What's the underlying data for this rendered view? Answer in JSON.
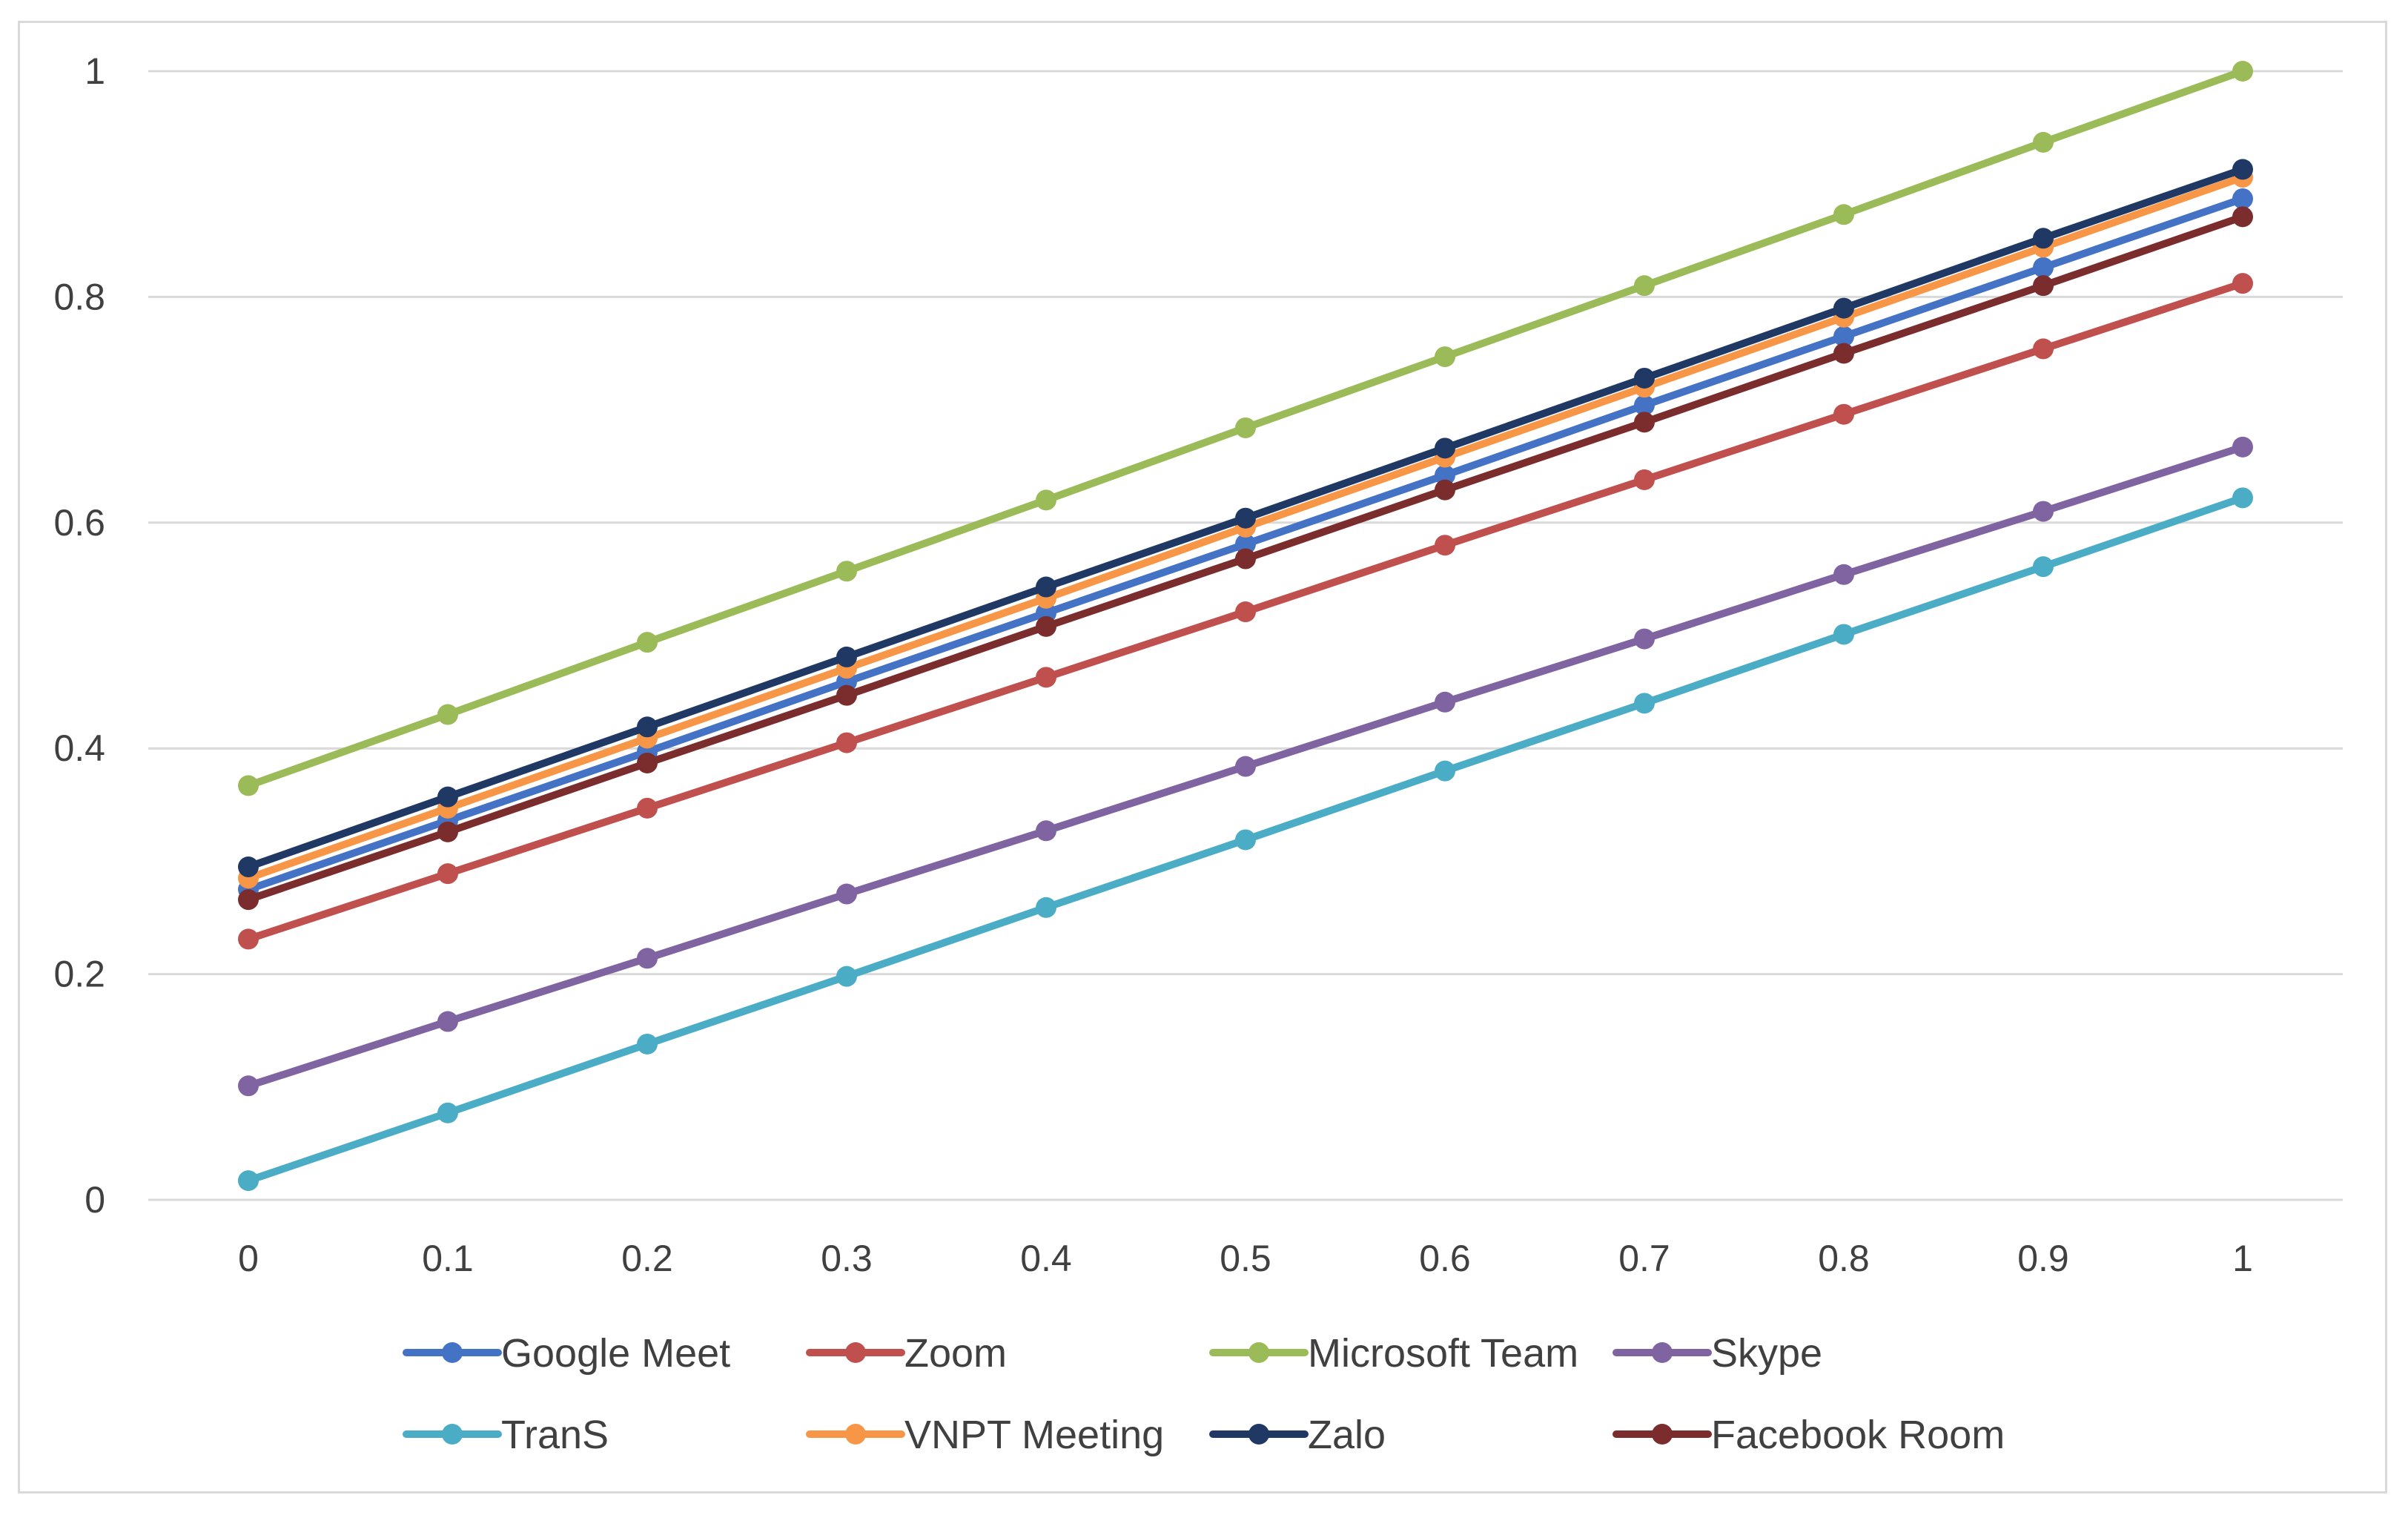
{
  "chart_data": {
    "type": "line",
    "title": "",
    "xlabel": "",
    "ylabel": "",
    "x": [
      0,
      0.1,
      0.2,
      0.3,
      0.4,
      0.5,
      0.6,
      0.7,
      0.8,
      0.9,
      1
    ],
    "x_tick_labels": [
      "0",
      "0.1",
      "0.2",
      "0.3",
      "0.4",
      "0.5",
      "0.6",
      "0.7",
      "0.8",
      "0.9",
      "1"
    ],
    "y_ticks": [
      0,
      0.2,
      0.4,
      0.6,
      0.8,
      1
    ],
    "y_tick_labels": [
      "0",
      "0.2",
      "0.4",
      "0.6",
      "0.8",
      "1"
    ],
    "ylim": [
      0,
      1
    ],
    "grid": true,
    "legend_position": "bottom",
    "series": [
      {
        "name": "Google Meet",
        "color": "#4472C4",
        "values": [
          0.275,
          0.336,
          0.397,
          0.459,
          0.52,
          0.581,
          0.642,
          0.704,
          0.765,
          0.826,
          0.887
        ]
      },
      {
        "name": "Zoom",
        "color": "#C0504D",
        "values": [
          0.231,
          0.289,
          0.347,
          0.405,
          0.463,
          0.521,
          0.58,
          0.638,
          0.696,
          0.754,
          0.812
        ]
      },
      {
        "name": "Microsoft Team",
        "color": "#9BBB59",
        "values": [
          0.367,
          0.43,
          0.494,
          0.557,
          0.62,
          0.684,
          0.747,
          0.81,
          0.873,
          0.937,
          1.0
        ]
      },
      {
        "name": "Skype",
        "color": "#8064A2",
        "values": [
          0.101,
          0.158,
          0.214,
          0.271,
          0.327,
          0.384,
          0.441,
          0.497,
          0.554,
          0.61,
          0.667
        ]
      },
      {
        "name": "TranS",
        "color": "#4BACC6",
        "values": [
          0.017,
          0.077,
          0.138,
          0.198,
          0.259,
          0.319,
          0.38,
          0.44,
          0.501,
          0.561,
          0.622
        ]
      },
      {
        "name": "VNPT Meeting",
        "color": "#F79646",
        "values": [
          0.285,
          0.347,
          0.409,
          0.471,
          0.533,
          0.596,
          0.658,
          0.72,
          0.782,
          0.844,
          0.906
        ]
      },
      {
        "name": "Zalo",
        "color": "#1F3864",
        "values": [
          0.295,
          0.357,
          0.419,
          0.481,
          0.543,
          0.604,
          0.666,
          0.728,
          0.79,
          0.852,
          0.913
        ]
      },
      {
        "name": "Facebook Room",
        "color": "#7B2C2C",
        "values": [
          0.266,
          0.326,
          0.387,
          0.447,
          0.508,
          0.568,
          0.629,
          0.689,
          0.75,
          0.81,
          0.871
        ]
      }
    ]
  }
}
